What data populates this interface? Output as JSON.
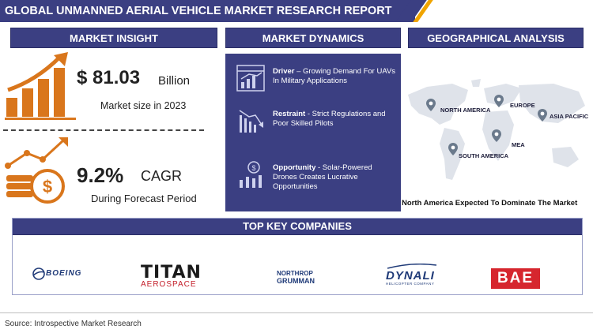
{
  "header": {
    "title": "GLOBAL UNMANNED AERIAL VEHICLE MARKET RESEARCH REPORT"
  },
  "insight": {
    "heading": "MARKET INSIGHT",
    "market_value": "$ 81.03",
    "market_unit": "Billion",
    "market_caption": "Market size in 2023",
    "cagr_value": "9.2%",
    "cagr_label": "CAGR",
    "cagr_caption": "During Forecast Period"
  },
  "dynamics": {
    "heading": "MARKET DYNAMICS",
    "items": [
      {
        "title": "Driver",
        "text": " – Growing Demand For UAVs In Military Applications",
        "icon": "driver-chart-icon"
      },
      {
        "title": "Restraint",
        "text": " - Strict Regulations and Poor Skilled Pilots",
        "icon": "restraint-chart-icon"
      },
      {
        "title": "Opportunity",
        "text": " - Solar-Powered Drones Creates Lucrative Opportunities",
        "icon": "opportunity-chart-icon"
      }
    ]
  },
  "geo": {
    "heading": "GEOGRAPHICAL ANALYSIS",
    "regions": [
      "NORTH AMERICA",
      "EUROPE",
      "ASIA PACIFIC",
      "MEA",
      "SOUTH AMERICA"
    ],
    "caption": "North America Expected To Dominate The Market"
  },
  "companies": {
    "heading": "TOP KEY COMPANIES",
    "boeing": "BOEING",
    "titan_top": "TITAN",
    "titan_bottom": "AEROSPACE",
    "northrop_top": "NORTHROP",
    "northrop_bottom": "GRUMMAN",
    "dynali": "DYNALI",
    "dynali_sub": "HELICOPTER COMPANY",
    "bae": "BAE"
  },
  "footer": {
    "source": "Source: Introspective Market Research"
  },
  "colors": {
    "navy": "#3b3f82",
    "orange": "#d9761c",
    "gold": "#f0a400",
    "bae_red": "#d6262e"
  }
}
